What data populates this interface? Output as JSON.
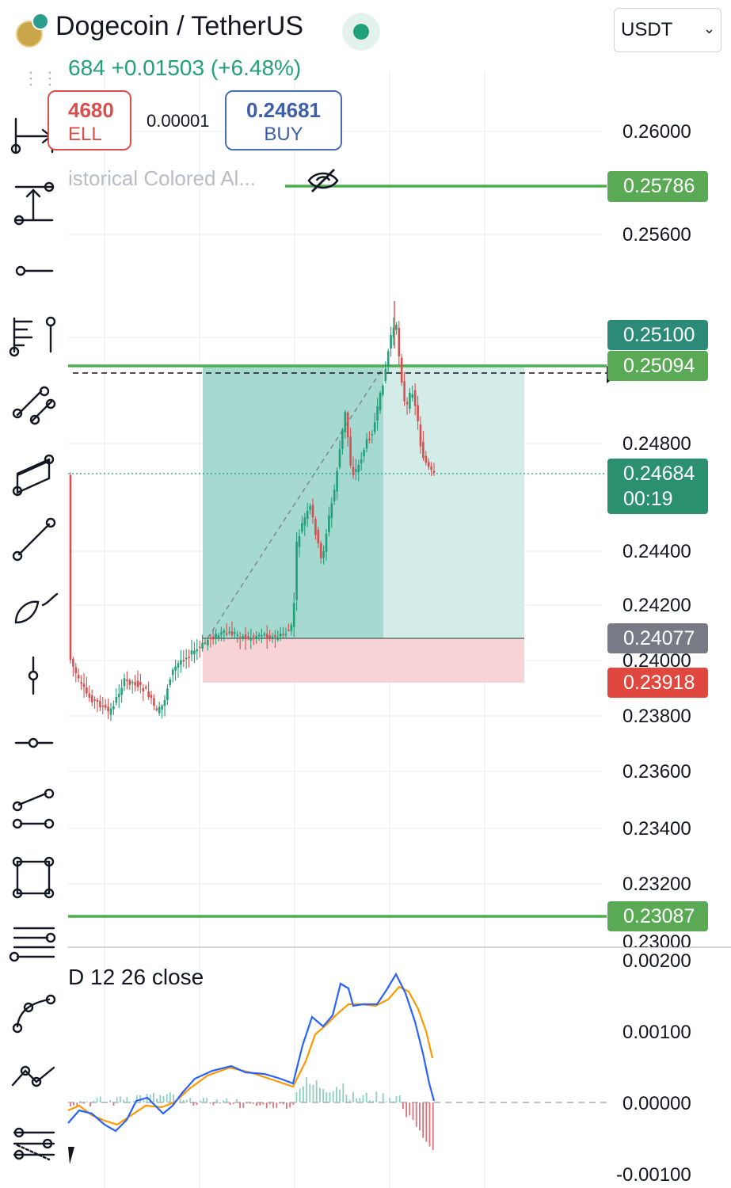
{
  "header": {
    "title": "Dogecoin / TetherUS",
    "price_change_line": "684  +0.01503 (+6.48%)",
    "quote_selector": {
      "value": "USDT"
    }
  },
  "trade": {
    "sell_price": "4680",
    "sell_label": "ELL",
    "spread": "0.00001",
    "buy_price": "0.24681",
    "buy_label": "BUY"
  },
  "indicator": {
    "name": "istorical Colored Al..."
  },
  "price_axis": {
    "ticks": [
      "0.26000",
      "0.25600",
      "0.24800",
      "0.24400",
      "0.24200",
      "0.24000",
      "0.23800",
      "0.23600",
      "0.23400",
      "0.23200",
      "0.23000"
    ],
    "badges": {
      "upper_line": "0.25786",
      "high_marker": "0.25100",
      "target": "0.25094",
      "last_price": "0.24684",
      "countdown": "00:19",
      "entry": "0.24077",
      "stop": "0.23918",
      "lower_line": "0.23087"
    }
  },
  "macd": {
    "label": "D 12 26 close",
    "ticks": [
      "0.00200",
      "0.00100",
      "0.00000",
      "-0.00100"
    ]
  },
  "colors": {
    "up": "#22a079",
    "down": "#d94f4f",
    "hline": "#4caf50",
    "target_zone": "#9fd8ce",
    "stop_zone": "#f5c6c8",
    "macd_line": "#2962ff",
    "signal_line": "#ff9800"
  },
  "toolbar_icons": [
    "date-range-icon",
    "price-range-icon",
    "horizontal-ray-icon",
    "fib-tool-icon",
    "parallel-channel-icon",
    "rectangle-channel-icon",
    "trend-line-icon",
    "brush-icon",
    "vertical-line-icon",
    "horizontal-line-icon",
    "path-icon",
    "rectangle-icon",
    "pitchfork-icon",
    "curve-icon",
    "polyline-icon",
    "gann-fan-icon"
  ]
}
